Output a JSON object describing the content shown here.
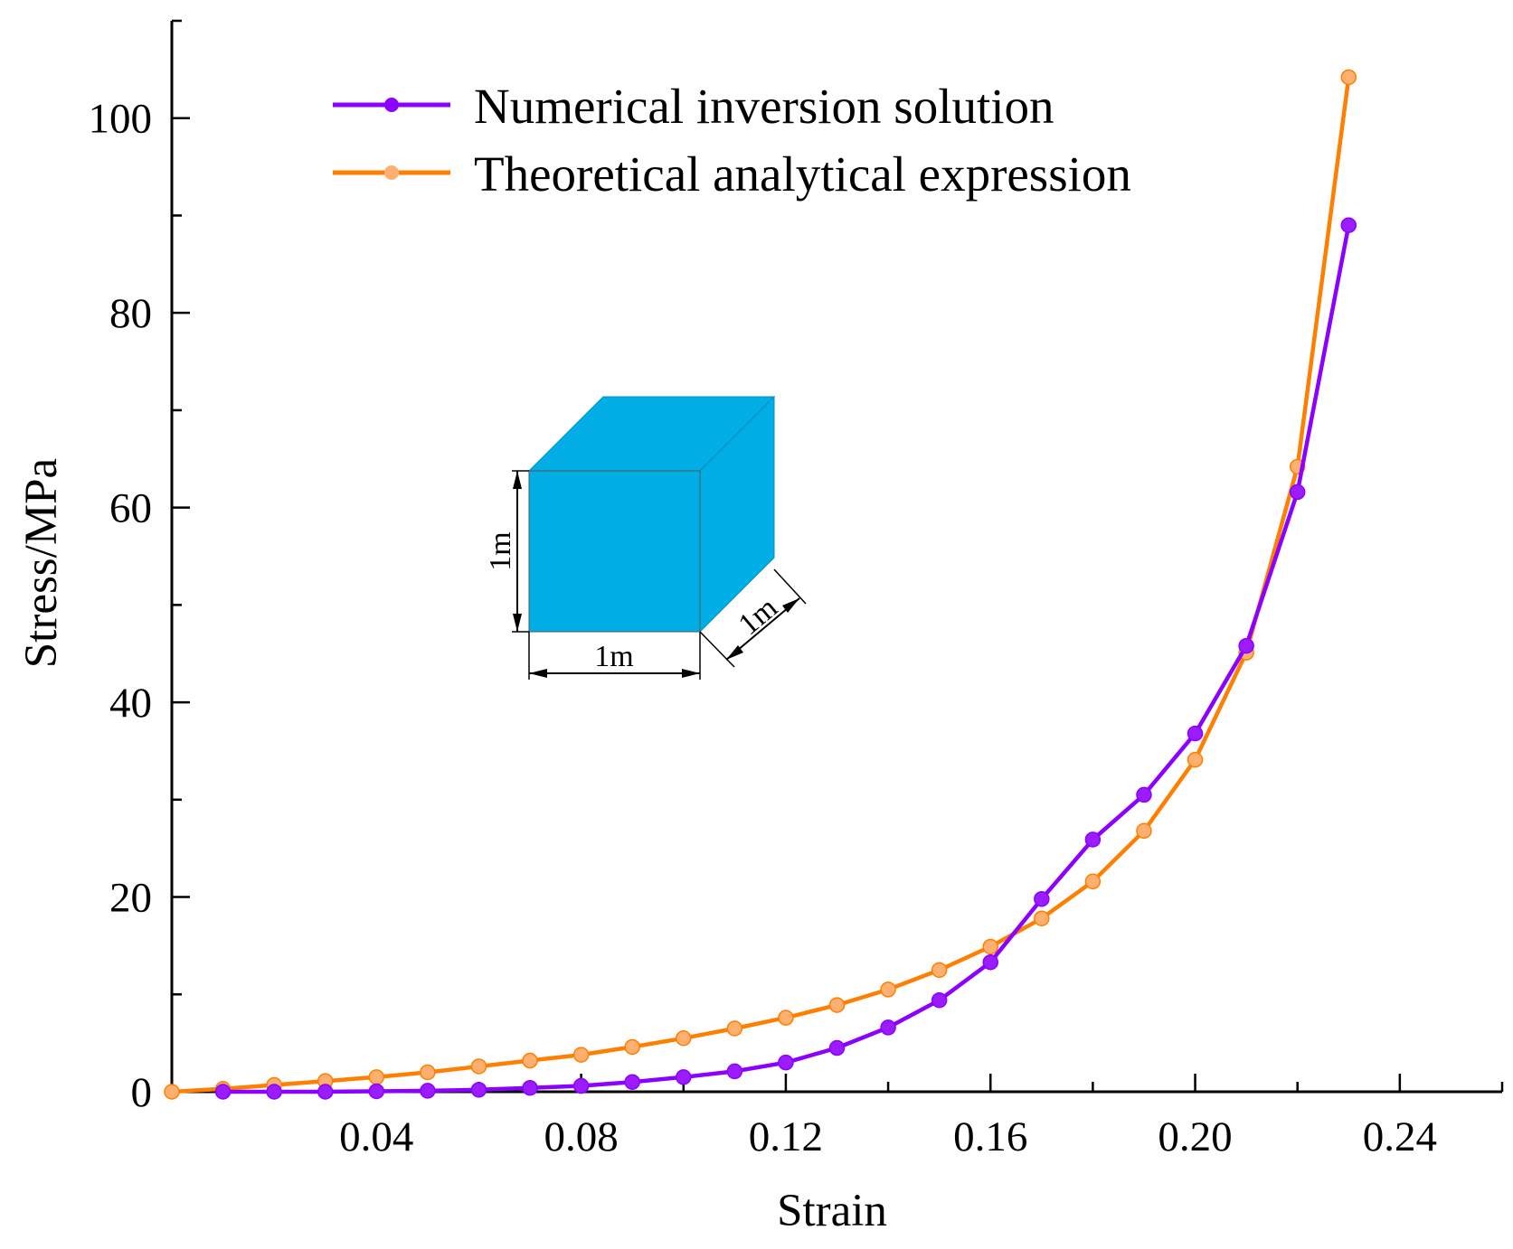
{
  "chart_data": {
    "type": "line",
    "xlabel": "Strain",
    "ylabel": "Stress/MPa",
    "xlim": [
      0,
      0.26
    ],
    "ylim": [
      0,
      110
    ],
    "xticks": [
      0.04,
      0.08,
      0.12,
      0.16,
      0.2,
      0.24
    ],
    "xtick_labels": [
      "0.04",
      "0.08",
      "0.12",
      "0.16",
      "0.20",
      "0.24"
    ],
    "yticks": [
      0,
      20,
      40,
      60,
      80,
      100
    ],
    "ytick_labels": [
      "0",
      "20",
      "40",
      "60",
      "80",
      "100"
    ],
    "legend_position": "top-left",
    "grid": false,
    "series": [
      {
        "name": "Numerical inversion solution",
        "color": "#8b00ff",
        "x": [
          0.01,
          0.02,
          0.03,
          0.04,
          0.05,
          0.06,
          0.07,
          0.08,
          0.09,
          0.1,
          0.11,
          0.12,
          0.13,
          0.14,
          0.15,
          0.16,
          0.17,
          0.18,
          0.19,
          0.2,
          0.21,
          0.22,
          0.23
        ],
        "y": [
          0.0,
          0.0,
          0.0,
          0.05,
          0.1,
          0.2,
          0.4,
          0.6,
          1.0,
          1.5,
          2.1,
          3.0,
          4.5,
          6.6,
          9.4,
          13.3,
          19.8,
          25.9,
          30.5,
          36.8,
          45.8,
          61.6,
          89.0
        ]
      },
      {
        "name": "Theoretical analytical expression",
        "color": "#ff7f00",
        "x": [
          0.0,
          0.01,
          0.02,
          0.03,
          0.04,
          0.05,
          0.06,
          0.07,
          0.08,
          0.09,
          0.1,
          0.11,
          0.12,
          0.13,
          0.14,
          0.15,
          0.16,
          0.17,
          0.18,
          0.19,
          0.2,
          0.21,
          0.22,
          0.23
        ],
        "y": [
          0.0,
          0.3,
          0.7,
          1.1,
          1.5,
          2.0,
          2.6,
          3.2,
          3.8,
          4.6,
          5.5,
          6.5,
          7.6,
          8.9,
          10.5,
          12.5,
          14.9,
          17.8,
          21.6,
          26.8,
          34.1,
          45.1,
          64.2,
          104.2
        ]
      }
    ],
    "annotations": {
      "cube_labels": [
        "1m",
        "1m",
        "1m"
      ],
      "cube_color": "#00aee5"
    }
  }
}
